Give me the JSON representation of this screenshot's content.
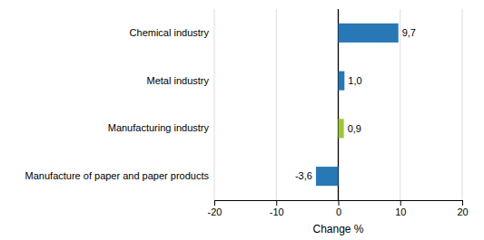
{
  "chart_data": {
    "type": "bar",
    "orientation": "horizontal",
    "categories": [
      "Manufacture of paper and paper products",
      "Manufacturing industry",
      "Metal industry",
      "Chemical industry"
    ],
    "values": [
      -3.6,
      0.9,
      1.0,
      9.7
    ],
    "value_labels": [
      "-3,6",
      "0,9",
      "1,0",
      "9,7"
    ],
    "data_labels": true,
    "colors": [
      "#2878b5",
      "#9dc63b",
      "#2878b5",
      "#2878b5"
    ],
    "xlabel": "Change %",
    "xlim": [
      -20,
      20
    ],
    "xticks": [
      -20,
      -10,
      0,
      10,
      20
    ],
    "grid": true
  }
}
